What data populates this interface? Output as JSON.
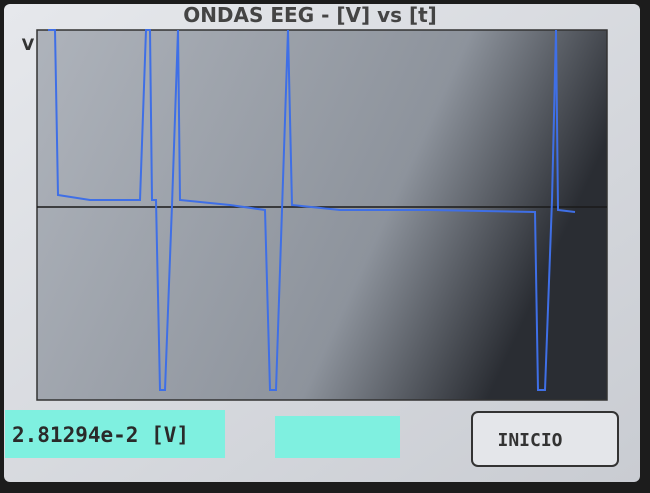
{
  "header": {
    "title": "ONDAS EEG - [V] vs [t]"
  },
  "plot": {
    "y_axis_label": "V"
  },
  "readout": {
    "value": "2.81294e-2 [V]"
  },
  "button": {
    "label": "INICIO"
  }
}
